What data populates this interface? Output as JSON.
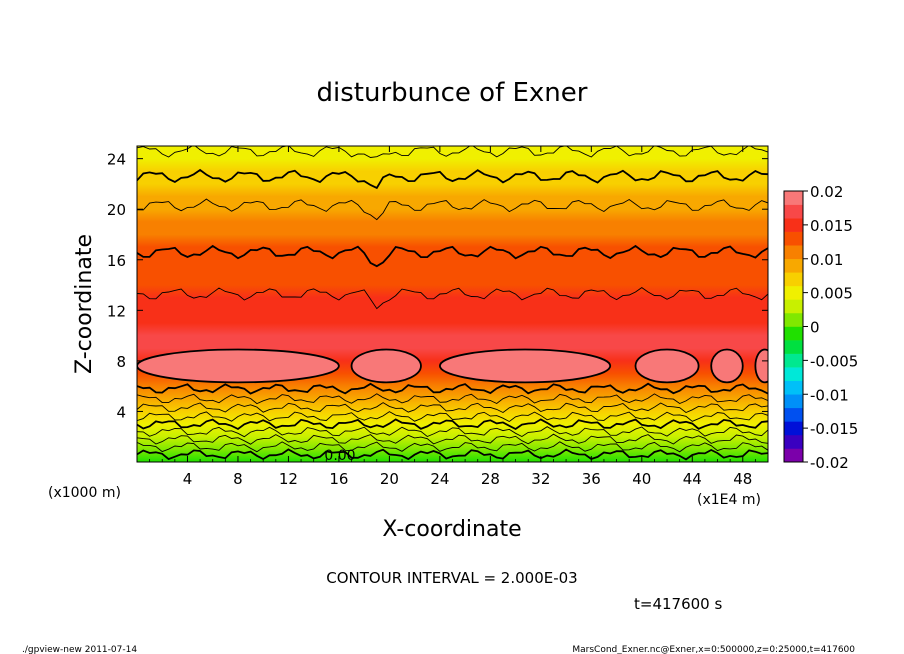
{
  "chart_data": {
    "type": "heatmap",
    "title": "disturbunce of Exner",
    "xlabel": "X-coordinate",
    "ylabel": "Z-coordinate",
    "x_unit": "(x1E4 m)",
    "y_unit": "(x1000 m)",
    "xlim": [
      0,
      50
    ],
    "ylim": [
      0,
      25
    ],
    "x_ticks": [
      "4",
      "8",
      "12",
      "16",
      "20",
      "24",
      "28",
      "32",
      "36",
      "40",
      "44",
      "48"
    ],
    "y_ticks": [
      "4",
      "8",
      "12",
      "16",
      "20",
      "24"
    ],
    "contour_label": "0.00",
    "contour_interval_text": "CONTOUR INTERVAL = 2.000E-03",
    "time_text": "t=417600 s",
    "colorbar": {
      "range": [
        -0.02,
        0.02
      ],
      "ticks": [
        "0.02",
        "0.015",
        "0.01",
        "0.005",
        "0",
        "-0.005",
        "-0.01",
        "-0.015",
        "-0.02"
      ],
      "colors": [
        "#7b00aa",
        "#3a00c0",
        "#0010d8",
        "#0050f0",
        "#0090f8",
        "#00c0f8",
        "#00e8d8",
        "#00e890",
        "#00e040",
        "#20e000",
        "#80e800",
        "#c8f000",
        "#f0f000",
        "#f8d000",
        "#f8a800",
        "#f88000",
        "#f85000",
        "#f83018",
        "#f84848",
        "#f87878"
      ]
    },
    "z_levels": [
      0,
      1,
      2,
      3,
      4,
      5,
      6,
      7,
      8,
      9,
      10,
      11,
      12,
      13,
      14,
      15,
      16,
      17,
      18,
      19,
      20,
      21,
      22,
      23,
      24,
      25
    ],
    "value_by_z": [
      -0.001,
      0.001,
      0.003,
      0.005,
      0.007,
      0.009,
      0.011,
      0.013,
      0.015,
      0.016,
      0.016,
      0.015,
      0.0145,
      0.014,
      0.0135,
      0.013,
      0.0125,
      0.012,
      0.011,
      0.01,
      0.009,
      0.008,
      0.007,
      0.006,
      0.005,
      0.0045
    ]
  },
  "footer": {
    "left": "./gpview-new  2011-07-14",
    "right": "MarsCond_Exner.nc@Exner,x=0:500000,z=0:25000,t=417600"
  }
}
